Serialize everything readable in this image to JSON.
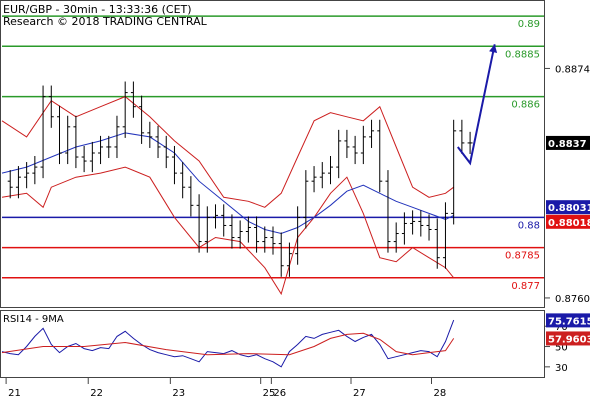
{
  "header": {
    "title": "EUR/GBP - 30min - 13:33:36 (CET)",
    "copyright": "Research © 2018 TRADING CENTRAL"
  },
  "colors": {
    "resistance": "#2a9a2a",
    "support": "#e01010",
    "pivot": "#1a1aa8",
    "price": "#000000",
    "bollinger": "#cc1f1f",
    "ma": "#2233bb",
    "rsi": "#1a1aa8",
    "rsi_ma": "#cc1f1f",
    "forecast": "#1a1aa8",
    "grid": "#444444"
  },
  "chart_data": [
    {
      "type": "line",
      "subtype": "candlestick-with-levels",
      "title": "EUR/GBP - 30min - 13:33:36 (CET)",
      "ylim": [
        0.87555,
        0.89075
      ],
      "yticks": [
        0.876,
        0.8874
      ],
      "ytick_labels": [
        "0.8760",
        "0.8874"
      ],
      "x_category_labels": [
        "21",
        "22",
        "23",
        "25",
        "26",
        "27",
        "28"
      ],
      "x_category_positions": [
        0.5,
        10.5,
        20.5,
        31.5,
        32.8,
        42.5,
        52.3
      ],
      "xlim": [
        0,
        66
      ],
      "last_price": 0.8837,
      "last_price_label": "0.8837",
      "bollinger_upper_tag": 0.88031,
      "bollinger_upper_tag_label": "0.88031",
      "bollinger_lower_tag": 0.88018,
      "bollinger_lower_tag_label": "0.88018",
      "levels": [
        {
          "value": 0.89,
          "label": "0.89",
          "role": "resistance"
        },
        {
          "value": 0.8885,
          "label": "0.8885",
          "role": "resistance"
        },
        {
          "value": 0.886,
          "label": "0.886",
          "role": "resistance"
        },
        {
          "value": 0.88,
          "label": "0.88",
          "role": "pivot"
        },
        {
          "value": 0.8785,
          "label": "0.8785",
          "role": "support"
        },
        {
          "value": 0.877,
          "label": "0.877",
          "role": "support"
        }
      ],
      "series": [
        {
          "kind": "price",
          "x": [
            0,
            1,
            2,
            3,
            4,
            5,
            6,
            7,
            8,
            9,
            10,
            11,
            12,
            13,
            14,
            15,
            16,
            17,
            18,
            19,
            20,
            21,
            22,
            23,
            24,
            25,
            26,
            27,
            28,
            29,
            30,
            31,
            32,
            33,
            34,
            35,
            36,
            37,
            38,
            39,
            40,
            41,
            42,
            43,
            44,
            45,
            46,
            47,
            48,
            49,
            50,
            51,
            52,
            53,
            54,
            55,
            56,
            57
          ],
          "values": [
            0.8818,
            0.8815,
            0.882,
            0.8822,
            0.8825,
            0.886,
            0.885,
            0.8832,
            0.8845,
            0.883,
            0.8828,
            0.8832,
            0.8835,
            0.8835,
            0.8845,
            0.8862,
            0.8855,
            0.8842,
            0.884,
            0.8835,
            0.883,
            0.8822,
            0.8815,
            0.8806,
            0.8788,
            0.88,
            0.8801,
            0.8796,
            0.879,
            0.8793,
            0.8795,
            0.8788,
            0.879,
            0.8787,
            0.8776,
            0.8782,
            0.88,
            0.8818,
            0.882,
            0.8822,
            0.8825,
            0.8838,
            0.8835,
            0.8832,
            0.884,
            0.8843,
            0.8818,
            0.8788,
            0.8792,
            0.8797,
            0.8798,
            0.8796,
            0.8794,
            0.878,
            0.8802,
            0.8843,
            0.8837,
            0.8837
          ]
        },
        {
          "kind": "bollinger-upper",
          "x": [
            0,
            3,
            6,
            9,
            12,
            15,
            18,
            21,
            24,
            27,
            30,
            32,
            34,
            36,
            38,
            40,
            42,
            44,
            46,
            48,
            50,
            52,
            54,
            55
          ],
          "values": [
            0.8848,
            0.884,
            0.8858,
            0.885,
            0.8855,
            0.886,
            0.885,
            0.8838,
            0.8828,
            0.881,
            0.8808,
            0.8805,
            0.8812,
            0.883,
            0.8848,
            0.8852,
            0.885,
            0.8848,
            0.8855,
            0.8835,
            0.8815,
            0.881,
            0.8812,
            0.8815
          ]
        },
        {
          "kind": "bollinger-lower",
          "x": [
            0,
            3,
            5,
            6,
            9,
            12,
            15,
            18,
            21,
            24,
            26,
            29,
            32,
            34,
            36,
            38,
            40,
            42,
            44,
            46,
            48,
            50,
            52,
            54,
            55
          ],
          "values": [
            0.881,
            0.8812,
            0.8805,
            0.8815,
            0.882,
            0.8822,
            0.8825,
            0.882,
            0.88,
            0.8785,
            0.879,
            0.8788,
            0.8775,
            0.8762,
            0.879,
            0.88,
            0.8812,
            0.882,
            0.8802,
            0.878,
            0.8778,
            0.8785,
            0.878,
            0.8775,
            0.877
          ]
        },
        {
          "kind": "moving-average",
          "x": [
            0,
            3,
            6,
            9,
            12,
            15,
            18,
            21,
            24,
            27,
            30,
            32,
            34,
            36,
            38,
            40,
            42,
            44,
            46,
            48,
            50,
            52,
            54,
            55
          ],
          "values": [
            0.8822,
            0.8825,
            0.883,
            0.8835,
            0.8838,
            0.8842,
            0.884,
            0.8832,
            0.8818,
            0.8808,
            0.8798,
            0.8794,
            0.8792,
            0.8795,
            0.88,
            0.8806,
            0.8813,
            0.8816,
            0.8812,
            0.8808,
            0.8805,
            0.8802,
            0.8799,
            0.8801
          ]
        },
        {
          "kind": "forecast",
          "x": [
            55.5,
            57,
            60
          ],
          "values": [
            0.8835,
            0.8827,
            0.8886
          ]
        }
      ]
    },
    {
      "type": "line",
      "title": "RSI14 - 9MA",
      "ylim": [
        20,
        85
      ],
      "yticks": [
        30,
        50,
        70
      ],
      "ytick_labels": [
        "30",
        "50",
        "70"
      ],
      "xlim": [
        0,
        66
      ],
      "last_rsi": 75.7615,
      "last_rsi_label": "75.7615",
      "last_ma": 57.9603,
      "last_ma_label": "57.9603",
      "series": [
        {
          "kind": "rsi",
          "x": [
            0,
            1,
            2,
            3,
            4,
            5,
            6,
            7,
            8,
            9,
            10,
            11,
            12,
            13,
            14,
            15,
            16,
            17,
            18,
            19,
            20,
            21,
            22,
            23,
            24,
            25,
            26,
            27,
            28,
            29,
            30,
            31,
            32,
            33,
            34,
            35,
            36,
            37,
            38,
            39,
            40,
            41,
            42,
            43,
            44,
            45,
            46,
            47,
            48,
            49,
            50,
            51,
            52,
            53,
            54,
            55
          ],
          "values": [
            45,
            43,
            42,
            50,
            60,
            68,
            52,
            44,
            50,
            53,
            48,
            46,
            49,
            48,
            60,
            65,
            58,
            52,
            47,
            44,
            42,
            40,
            41,
            38,
            35,
            45,
            44,
            43,
            46,
            42,
            40,
            42,
            38,
            35,
            30,
            45,
            52,
            60,
            58,
            62,
            64,
            66,
            60,
            55,
            59,
            62,
            52,
            38,
            40,
            42,
            44,
            46,
            45,
            40,
            55,
            76
          ]
        },
        {
          "kind": "rsi-ma",
          "x": [
            0,
            5,
            10,
            15,
            20,
            25,
            30,
            35,
            38,
            40,
            42,
            44,
            46,
            48,
            50,
            52,
            54,
            55
          ],
          "values": [
            44,
            50,
            50,
            54,
            47,
            42,
            43,
            42,
            50,
            58,
            62,
            63,
            57,
            45,
            42,
            44,
            46,
            58
          ]
        }
      ]
    }
  ]
}
